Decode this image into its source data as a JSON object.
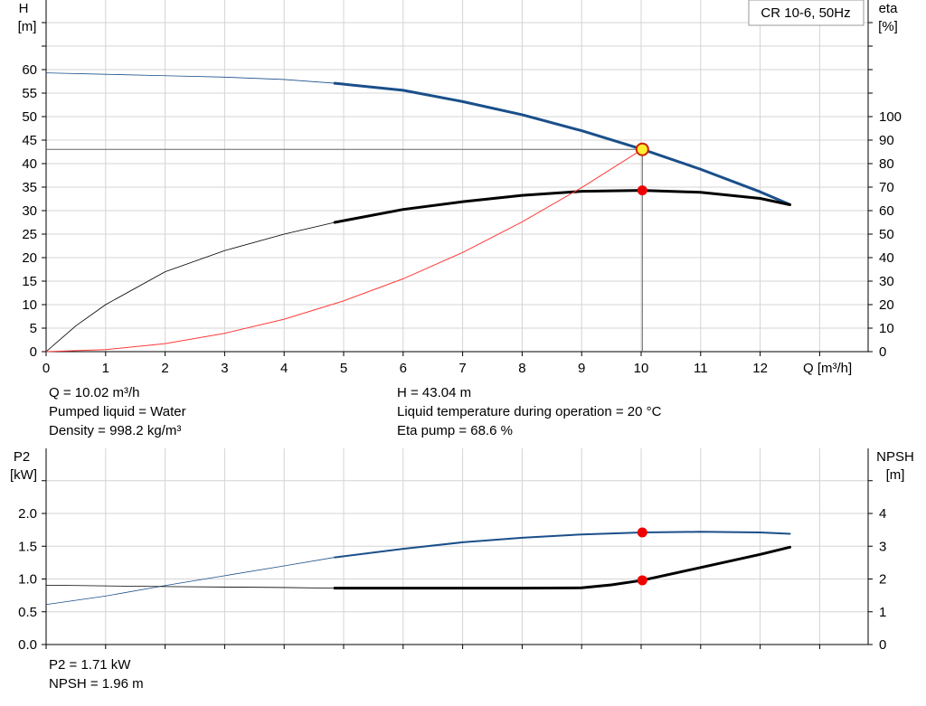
{
  "chart_data": [
    {
      "type": "line",
      "title": "CR 10-6, 50Hz",
      "xlabel": "Q [m³/h]",
      "ylabel": "H\n[m]",
      "y2label": "eta\n[%]",
      "xlim": [
        0,
        13.5
      ],
      "ylim": [
        0,
        70
      ],
      "y2lim": [
        0,
        140
      ],
      "xticks": [
        "0",
        "1",
        "2",
        "3",
        "4",
        "5",
        "6",
        "7",
        "8",
        "9",
        "10",
        "11",
        "12"
      ],
      "yticks": [
        "0",
        "5",
        "10",
        "15",
        "20",
        "25",
        "30",
        "35",
        "40",
        "45",
        "50",
        "55",
        "60"
      ],
      "y2ticks": [
        "0",
        "10",
        "20",
        "30",
        "40",
        "50",
        "60",
        "70",
        "80",
        "90",
        "100"
      ],
      "grid": true,
      "series": [
        {
          "axis": "left",
          "color": "#1a4f8a",
          "thin_until": 4.85,
          "x": [
            0,
            1,
            2,
            3,
            4,
            4.85,
            6,
            7,
            8,
            9,
            10.02,
            11,
            12,
            12.5
          ],
          "y": [
            59.3,
            59.0,
            58.7,
            58.4,
            57.9,
            57.1,
            55.6,
            53.2,
            50.4,
            47.0,
            43.04,
            38.8,
            34.0,
            31.3
          ]
        },
        {
          "axis": "right",
          "color": "#000000",
          "thin_until": 4.85,
          "x": [
            0,
            0.5,
            1,
            2,
            3,
            4,
            4.85,
            6,
            7,
            8,
            9,
            10.02,
            11,
            12,
            12.5
          ],
          "y": [
            0,
            11,
            20,
            34,
            43,
            50,
            55,
            60.5,
            63.8,
            66.5,
            68.2,
            68.6,
            67.8,
            65.2,
            62.5
          ]
        },
        {
          "axis": "left",
          "color": "#ff3b3b",
          "thin_until": 99,
          "x": [
            0,
            1,
            2,
            3,
            4,
            5,
            6,
            7,
            8,
            9,
            10.02
          ],
          "y": [
            0,
            0.43,
            1.7,
            3.9,
            6.9,
            10.8,
            15.5,
            21.1,
            27.6,
            34.9,
            43.04
          ]
        }
      ],
      "operating_point": {
        "q": 10.02,
        "h": 43.04,
        "eta": 68.6
      }
    },
    {
      "type": "line",
      "xlabel": "",
      "ylabel": "P2\n[kW]",
      "y2label": "NPSH\n[m]",
      "xlim": [
        0,
        13.5
      ],
      "ylim": [
        0,
        2.5
      ],
      "y2lim": [
        0,
        5
      ],
      "yticks": [
        "0.0",
        "0.5",
        "1.0",
        "1.5",
        "2.0"
      ],
      "y2ticks": [
        "0",
        "1",
        "2",
        "3",
        "4"
      ],
      "grid": true,
      "series": [
        {
          "axis": "left",
          "color": "#1a4f8a",
          "thin_until": 4.85,
          "x": [
            0,
            1,
            2,
            3,
            4,
            4.85,
            6,
            7,
            8,
            9,
            10.02,
            11,
            12,
            12.5
          ],
          "y": [
            0.61,
            0.74,
            0.9,
            1.05,
            1.2,
            1.33,
            1.46,
            1.56,
            1.63,
            1.68,
            1.71,
            1.72,
            1.71,
            1.69
          ]
        },
        {
          "axis": "right",
          "color": "#000000",
          "thin_until": 4.85,
          "x": [
            0,
            2,
            4,
            4.85,
            6,
            7,
            8,
            9,
            9.5,
            10.02,
            11,
            12,
            12.5
          ],
          "y": [
            1.81,
            1.77,
            1.74,
            1.72,
            1.72,
            1.72,
            1.72,
            1.73,
            1.82,
            1.96,
            2.35,
            2.75,
            2.97
          ]
        }
      ],
      "operating_point": {
        "q": 10.02,
        "p2": 1.71,
        "npsh": 1.96
      }
    }
  ],
  "info": {
    "q": "Q = 10.02 m³/h",
    "liquid": "Pumped liquid = Water",
    "density": "Density = 998.2 kg/m³",
    "h": "H = 43.04 m",
    "temp": "Liquid temperature during operation = 20 °C",
    "eta": "Eta pump = 68.6 %",
    "p2": "P2 = 1.71 kW",
    "npsh": "NPSH = 1.96 m"
  }
}
